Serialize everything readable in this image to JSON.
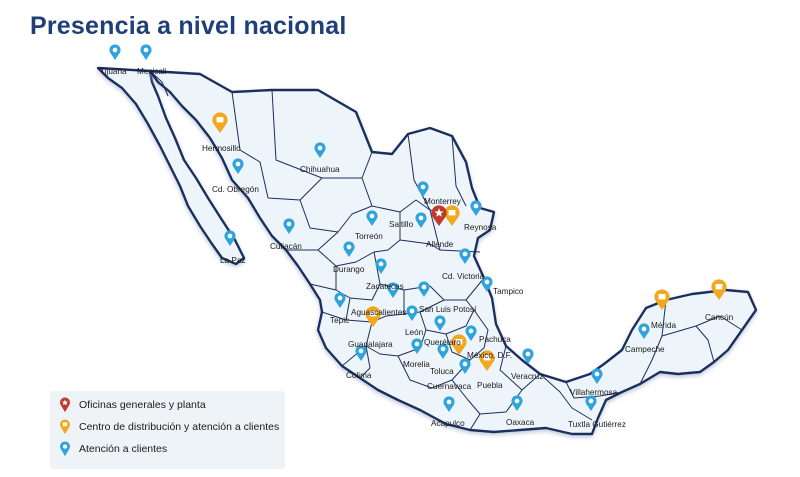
{
  "title": "Presencia a nivel nacional",
  "colors": {
    "title": "#1f3f78",
    "pin_hq": "#c0392b",
    "pin_distribution": "#f2a81d",
    "pin_service": "#2ea3dc",
    "land": "#edf4fa",
    "border": "#1b2f5e"
  },
  "legend": [
    {
      "type": "hq",
      "label": "Oficinas generales y planta"
    },
    {
      "type": "distribution",
      "label": "Centro de distribución y atención a clientes"
    },
    {
      "type": "service",
      "label": "Atención a clientes"
    }
  ],
  "locations": [
    {
      "name": "Tijuana",
      "type": "service"
    },
    {
      "name": "Mexicali",
      "type": "service"
    },
    {
      "name": "Hermosillo",
      "type": "distribution"
    },
    {
      "name": "Cd. Obregón",
      "type": "service"
    },
    {
      "name": "Chihuahua",
      "type": "service"
    },
    {
      "name": "La Paz",
      "type": "service"
    },
    {
      "name": "Culiacán",
      "type": "service"
    },
    {
      "name": "Torreón",
      "type": "service"
    },
    {
      "name": "Durango",
      "type": "service"
    },
    {
      "name": "Monterrey",
      "type": "service"
    },
    {
      "name": "Saltillo",
      "type": "service"
    },
    {
      "name": "Allende",
      "type": "hq"
    },
    {
      "name": "Reynosa",
      "type": "distribution"
    },
    {
      "name": "Reynosa pin",
      "type": "service"
    },
    {
      "name": "Cd. Victoria",
      "type": "service"
    },
    {
      "name": "Tampico",
      "type": "service"
    },
    {
      "name": "Zacatecas",
      "type": "service"
    },
    {
      "name": "Aguascalientes",
      "type": "service"
    },
    {
      "name": "San Luis Potosí",
      "type": "service"
    },
    {
      "name": "Tepic",
      "type": "service"
    },
    {
      "name": "León",
      "type": "service"
    },
    {
      "name": "Guadalajara",
      "type": "distribution"
    },
    {
      "name": "Querétaro",
      "type": "service"
    },
    {
      "name": "Pachuca",
      "type": "service"
    },
    {
      "name": "Morelia",
      "type": "service"
    },
    {
      "name": "México, D.F.",
      "type": "distribution"
    },
    {
      "name": "Toluca",
      "type": "service"
    },
    {
      "name": "Cuernavaca",
      "type": "service"
    },
    {
      "name": "Puebla",
      "type": "distribution"
    },
    {
      "name": "Veracruz",
      "type": "service"
    },
    {
      "name": "Colima",
      "type": "service"
    },
    {
      "name": "Acapulco",
      "type": "service"
    },
    {
      "name": "Oaxaca",
      "type": "service"
    },
    {
      "name": "Villahermosa",
      "type": "service"
    },
    {
      "name": "Tuxtla Gutiérrez",
      "type": "service"
    },
    {
      "name": "Campeche",
      "type": "service"
    },
    {
      "name": "Mérida",
      "type": "distribution"
    },
    {
      "name": "Cancún",
      "type": "distribution"
    }
  ]
}
